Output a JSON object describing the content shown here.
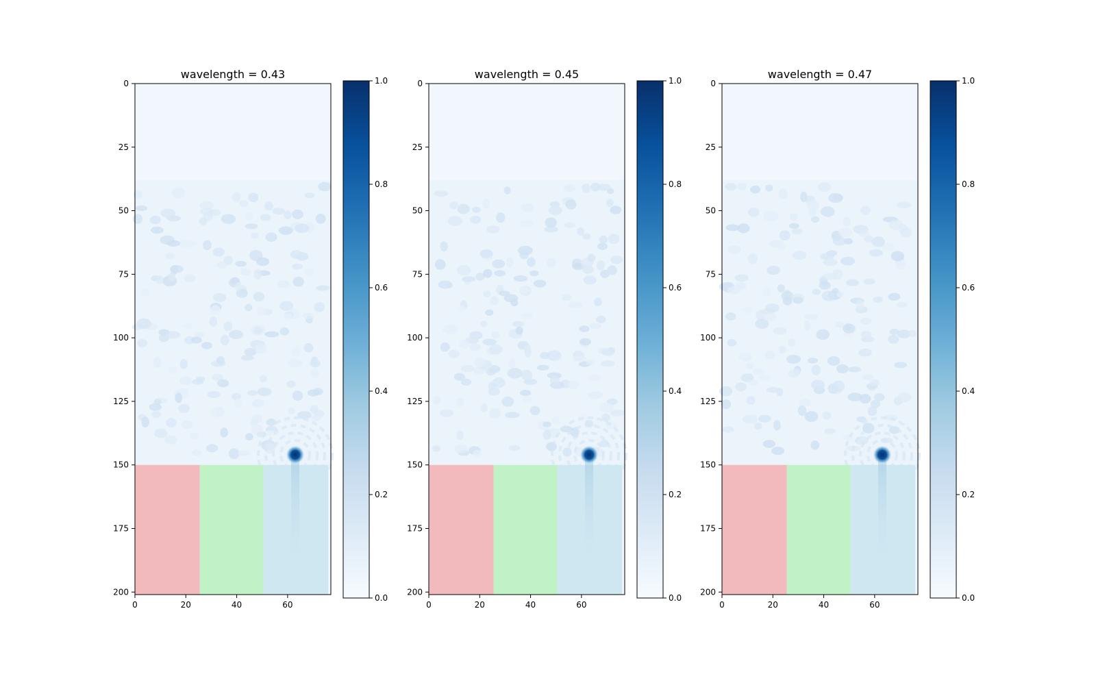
{
  "chart_data": [
    {
      "type": "heatmap",
      "title": "wavelength = 0.43",
      "xlim": [
        0,
        77
      ],
      "ylim": [
        201,
        0
      ],
      "x_ticks": [
        "0",
        "20",
        "40",
        "60"
      ],
      "y_ticks": [
        "0",
        "25",
        "50",
        "75",
        "100",
        "125",
        "150",
        "175",
        "200"
      ],
      "colormap": "Blues",
      "colorbar": {
        "range": [
          0,
          1
        ],
        "ticks": [
          "0.0",
          "0.2",
          "0.4",
          "0.6",
          "0.8",
          "1.0"
        ]
      },
      "background_value": 0.03,
      "field_region_rows": [
        38,
        150
      ],
      "focus_spot": {
        "x": 63,
        "y": 146,
        "value": 1.0
      },
      "material_regions": [
        {
          "x": [
            0,
            25.5
          ],
          "y": [
            150,
            201
          ],
          "color": "#f2babd"
        },
        {
          "x": [
            25.5,
            50.5
          ],
          "y": [
            150,
            201
          ],
          "color": "#c1f2c6"
        },
        {
          "x": [
            50.5,
            76
          ],
          "y": [
            150,
            201
          ],
          "color": "#cfe7f1"
        }
      ]
    },
    {
      "type": "heatmap",
      "title": "wavelength = 0.45",
      "xlim": [
        0,
        77
      ],
      "ylim": [
        201,
        0
      ],
      "x_ticks": [
        "0",
        "20",
        "40",
        "60"
      ],
      "y_ticks": [
        "0",
        "25",
        "50",
        "75",
        "100",
        "125",
        "150",
        "175",
        "200"
      ],
      "colormap": "Blues",
      "colorbar": {
        "range": [
          0,
          1
        ],
        "ticks": [
          "0.0",
          "0.2",
          "0.4",
          "0.6",
          "0.8",
          "1.0"
        ]
      },
      "background_value": 0.03,
      "field_region_rows": [
        38,
        150
      ],
      "focus_spot": {
        "x": 63,
        "y": 146,
        "value": 1.0
      },
      "material_regions": [
        {
          "x": [
            0,
            25.5
          ],
          "y": [
            150,
            201
          ],
          "color": "#f2babd"
        },
        {
          "x": [
            25.5,
            50.5
          ],
          "y": [
            150,
            201
          ],
          "color": "#c1f2c6"
        },
        {
          "x": [
            50.5,
            76
          ],
          "y": [
            150,
            201
          ],
          "color": "#cfe7f1"
        }
      ]
    },
    {
      "type": "heatmap",
      "title": "wavelength = 0.47",
      "xlim": [
        0,
        77
      ],
      "ylim": [
        201,
        0
      ],
      "x_ticks": [
        "0",
        "20",
        "40",
        "60"
      ],
      "y_ticks": [
        "0",
        "25",
        "50",
        "75",
        "100",
        "125",
        "150",
        "175",
        "200"
      ],
      "colormap": "Blues",
      "colorbar": {
        "range": [
          0,
          1
        ],
        "ticks": [
          "0.0",
          "0.2",
          "0.4",
          "0.6",
          "0.8",
          "1.0"
        ]
      },
      "background_value": 0.03,
      "field_region_rows": [
        38,
        150
      ],
      "focus_spot": {
        "x": 63,
        "y": 146,
        "value": 1.0
      },
      "material_regions": [
        {
          "x": [
            0,
            25.5
          ],
          "y": [
            150,
            201
          ],
          "color": "#f2babd"
        },
        {
          "x": [
            25.5,
            50.5
          ],
          "y": [
            150,
            201
          ],
          "color": "#c1f2c6"
        },
        {
          "x": [
            50.5,
            76
          ],
          "y": [
            150,
            201
          ],
          "color": "#cfe7f1"
        }
      ]
    }
  ]
}
